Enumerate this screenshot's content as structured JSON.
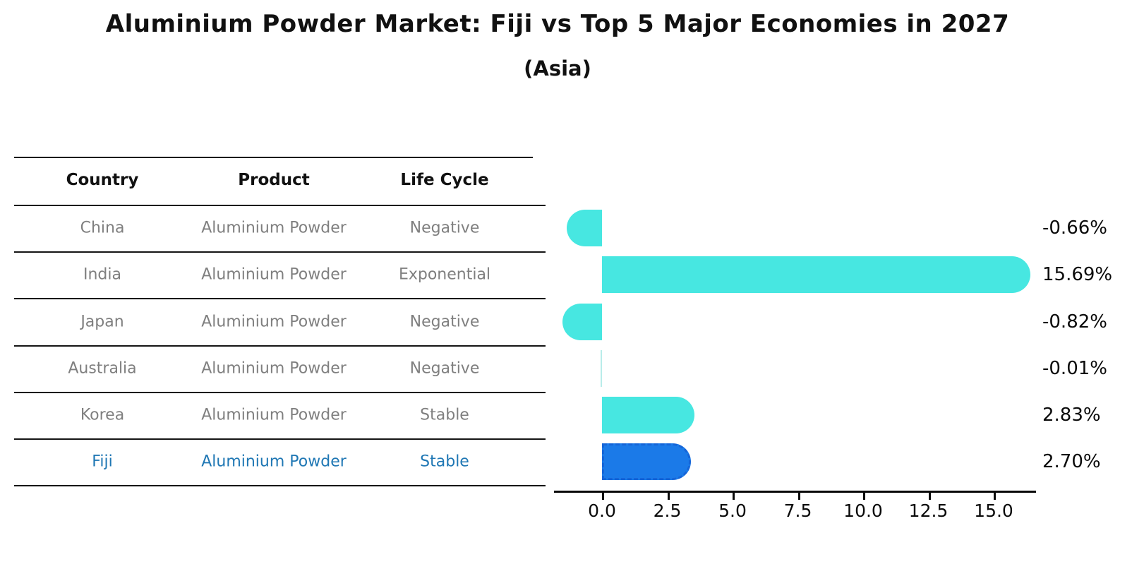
{
  "title": "Aluminium Powder Market: Fiji vs Top 5 Major Economies in 2027",
  "subtitle": "(Asia)",
  "table": {
    "headers": [
      "Country",
      "Product",
      "Life Cycle"
    ],
    "rows": [
      {
        "country": "China",
        "product": "Aluminium Powder",
        "life_cycle": "Negative",
        "highlighted": false
      },
      {
        "country": "India",
        "product": "Aluminium Powder",
        "life_cycle": "Exponential",
        "highlighted": false
      },
      {
        "country": "Japan",
        "product": "Aluminium Powder",
        "life_cycle": "Negative",
        "highlighted": false
      },
      {
        "country": "Australia",
        "product": "Aluminium Powder",
        "life_cycle": "Negative",
        "highlighted": false
      },
      {
        "country": "Korea",
        "product": "Aluminium Powder",
        "life_cycle": "Stable",
        "highlighted": false
      },
      {
        "country": "Fiji",
        "product": "Aluminium Powder",
        "life_cycle": "Stable",
        "highlighted": true
      }
    ]
  },
  "chart_data": {
    "type": "bar",
    "orientation": "horizontal",
    "title": "Aluminium Powder Market: Fiji vs Top 5 Major Economies in 2027",
    "subtitle": "(Asia)",
    "categories": [
      "China",
      "India",
      "Japan",
      "Australia",
      "Korea",
      "Fiji"
    ],
    "values": [
      -0.66,
      15.69,
      -0.82,
      -0.01,
      2.83,
      2.7
    ],
    "value_labels": [
      "-0.66%",
      "15.69%",
      "-0.82%",
      "-0.01%",
      "2.83%",
      "2.70%"
    ],
    "x_tick_values": [
      0.0,
      2.5,
      5.0,
      7.5,
      10.0,
      12.5,
      15.0
    ],
    "x_tick_labels": [
      "0.0",
      "2.5",
      "5.0",
      "7.5",
      "10.0",
      "12.5",
      "15.0"
    ],
    "xlim": [
      -2.0,
      16.6
    ],
    "grid": false,
    "legend": null,
    "highlight_index": 5,
    "colors": {
      "bar": "#47E7E1",
      "highlight_bar": "#1B7AE8",
      "highlight_border": "#1565D8",
      "highlight_text": "#1F77B4",
      "table_text": "#7F7F7F",
      "axis": "#0A0A0A"
    }
  }
}
